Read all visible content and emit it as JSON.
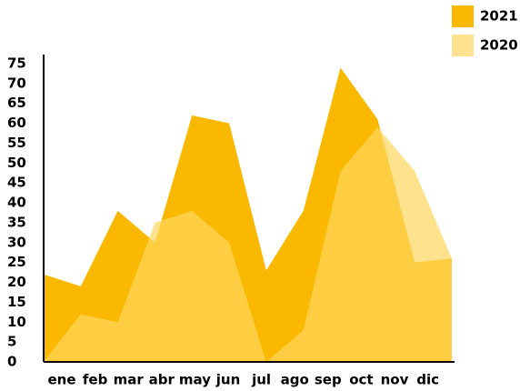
{
  "chart_data": {
    "type": "area",
    "categories": [
      "ene",
      "feb",
      "mar",
      "abr",
      "may",
      "jun",
      "jul",
      "ago",
      "sep",
      "oct",
      "nov",
      "dic"
    ],
    "series": [
      {
        "name": "2021",
        "color": "#FAB800",
        "values": [
          22,
          19,
          38,
          30,
          62,
          60,
          23,
          38,
          74,
          61,
          25,
          26
        ]
      },
      {
        "name": "2020",
        "color": "#FFD65C",
        "values": [
          0,
          12,
          10,
          35,
          38,
          30,
          0,
          8,
          48,
          59,
          48,
          26
        ]
      }
    ],
    "ylim": [
      0,
      75
    ],
    "yticks": [
      0,
      5,
      10,
      15,
      20,
      25,
      30,
      35,
      40,
      45,
      50,
      55,
      60,
      65,
      70,
      75
    ],
    "legend": "top-right"
  }
}
